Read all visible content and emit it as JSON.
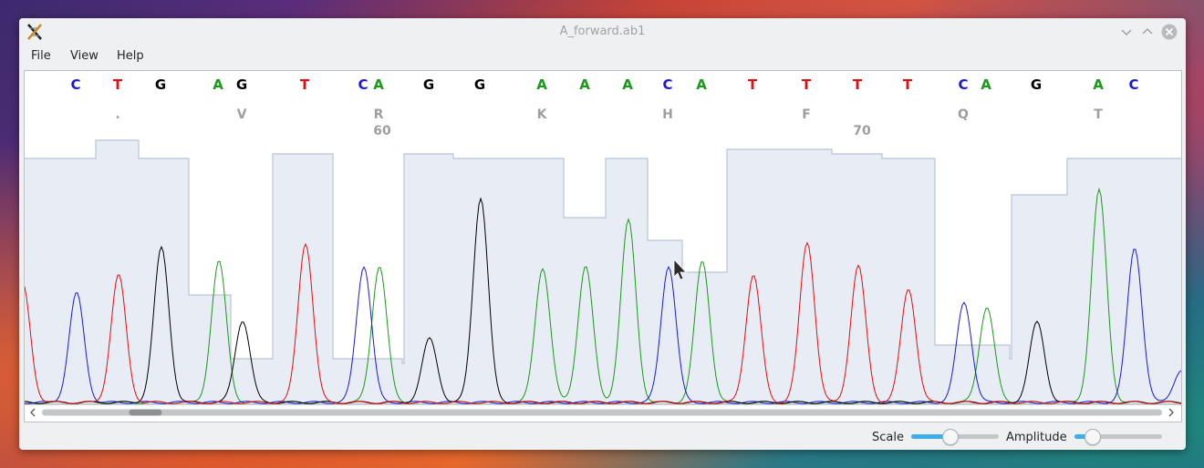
{
  "window": {
    "title": "A_forward.ab1"
  },
  "menu": {
    "items": [
      "File",
      "View",
      "Help"
    ]
  },
  "colors": {
    "A": "#1a9a1a",
    "C": "#1a1ad6",
    "G": "#000000",
    "T": "#e01010",
    "peak_bg": "#e8ecf4",
    "peak_edge": "#b8c4d8",
    "accent": "#3daee9"
  },
  "bases": [
    "C",
    "T",
    "G",
    "A",
    "G",
    "T",
    "C",
    "A",
    "G",
    "G",
    "A",
    "A",
    "A",
    "C",
    "A",
    "T",
    "T",
    "T",
    "T",
    "C",
    "A",
    "G",
    "A",
    "C"
  ],
  "amino_acids": [
    ".",
    "V",
    "R",
    "K",
    "H",
    "F",
    "Q",
    "T"
  ],
  "positions": [
    "60",
    "70"
  ],
  "controls": {
    "scale_label": "Scale",
    "amplitude_label": "Amplitude",
    "scale_value": 0.44,
    "amplitude_value": 0.2
  },
  "scroll": {
    "position": 0.08
  },
  "icons": {
    "app": "dna-icon",
    "minimize": "chevron-down-icon",
    "maximize": "chevron-up-icon",
    "close": "close-icon",
    "scroll_left": "arrow-left-icon",
    "scroll_right": "arrow-right-icon"
  }
}
